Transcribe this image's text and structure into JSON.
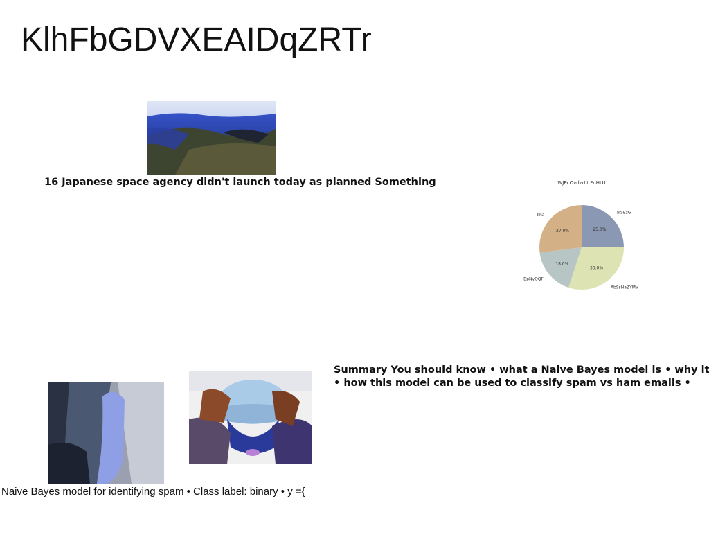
{
  "page": {
    "title": "KlhFbGDVXEAIDqZRTr",
    "caption_top": "16 Japanese space agency didn't launch today as planned Something",
    "summary_lines": [
      "Summary You should know • what a Naive Bayes model is • why it is",
      "• how this model can be used to classify spam vs ham emails •"
    ],
    "caption_bottom": "Naive Bayes model for identifying spam • Class label: binary • y ={"
  },
  "chart_data": {
    "type": "pie",
    "title": "WJEcOvdzrIlt FnHLU",
    "labels": [
      "aISEzG",
      "AbSsHaZYMV",
      "BpNyOQF",
      "Ilha"
    ],
    "values": [
      25.0,
      30.0,
      18.0,
      27.0
    ],
    "value_labels": [
      "25.0%",
      "30.0%",
      "18.0%",
      "27.0%"
    ],
    "colors": [
      "#8b98b4",
      "#dde3b2",
      "#b7c6c4",
      "#d4b086"
    ],
    "start": "top",
    "direction": "clockwise"
  }
}
